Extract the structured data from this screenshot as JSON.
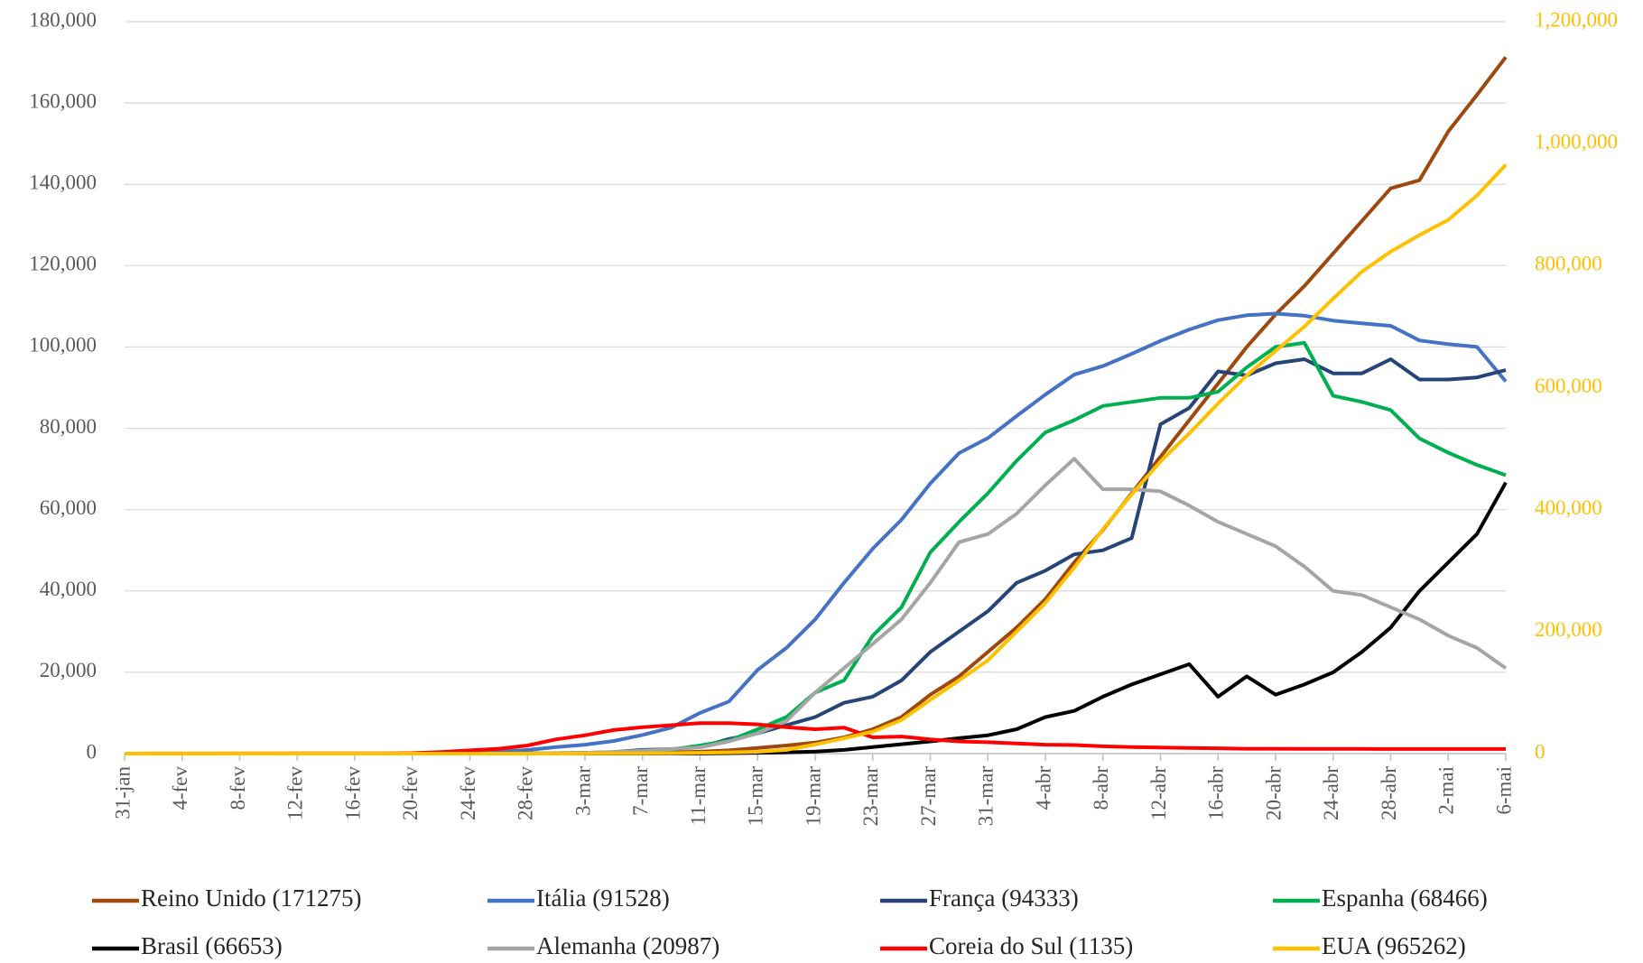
{
  "chart_data": {
    "type": "line",
    "categories": [
      "31-jan",
      null,
      "4-fev",
      null,
      "8-fev",
      null,
      "12-fev",
      null,
      "16-fev",
      null,
      "20-fev",
      null,
      "24-fev",
      null,
      "28-fev",
      null,
      "3-mar",
      null,
      "7-mar",
      null,
      "11-mar",
      null,
      "15-mar",
      null,
      "19-mar",
      null,
      "23-mar",
      null,
      "27-mar",
      null,
      "31-mar",
      null,
      "4-abr",
      null,
      "8-abr",
      null,
      "12-abr",
      null,
      "16-abr",
      null,
      "20-abr",
      null,
      "24-abr",
      null,
      "28-abr",
      null,
      "2-mai",
      null,
      "6-mai"
    ],
    "ylim": [
      0,
      180000
    ],
    "yticks": [
      0,
      {
        "value": 20000,
        "label": "20,000"
      },
      {
        "value": 40000,
        "label": "40,000"
      },
      {
        "value": 60000,
        "label": "60,000"
      },
      {
        "value": 80000,
        "label": "80,000"
      },
      {
        "value": 100000,
        "label": "100,000"
      },
      {
        "value": 120000,
        "label": "120,000"
      },
      {
        "value": 140000,
        "label": "140,000"
      },
      {
        "value": 160000,
        "label": "160,000"
      },
      {
        "value": 180000,
        "label": "180,000"
      }
    ],
    "y2lim": [
      0,
      1200000
    ],
    "y2ticks": [
      0,
      {
        "value": 200000,
        "label": "200,000"
      },
      {
        "value": 400000,
        "label": "400,000"
      },
      {
        "value": 600000,
        "label": "600,000"
      },
      {
        "value": 800000,
        "label": "800,000"
      },
      {
        "value": 1000000,
        "label": "1,000,000"
      },
      {
        "value": 1200000,
        "label": "1,200,000"
      }
    ],
    "y2color": "#ffc000",
    "grid": true,
    "legend": "bottom",
    "series": [
      {
        "name": "Reino Unido (171275)",
        "color": "#9e480e",
        "values": [
          0,
          0,
          0,
          0,
          0,
          0,
          0,
          0,
          0,
          0,
          0,
          0,
          0,
          10,
          20,
          35,
          50,
          120,
          270,
          320,
          460,
          800,
          1400,
          2000,
          2700,
          4000,
          6000,
          9000,
          14500,
          19000,
          25000,
          31000,
          38000,
          47000,
          55000,
          64000,
          73000,
          82000,
          91000,
          100000,
          108000,
          115000,
          123000,
          131000,
          139000,
          141000,
          153000,
          162000,
          171275
        ]
      },
      {
        "name": "Itália (91528)",
        "color": "#4472c4",
        "values": [
          2,
          3,
          3,
          3,
          3,
          3,
          3,
          3,
          3,
          3,
          3,
          60,
          230,
          470,
          890,
          1600,
          2200,
          3100,
          4600,
          6400,
          10000,
          12800,
          20600,
          26000,
          33000,
          42000,
          50400,
          57500,
          66400,
          73900,
          77600,
          83000,
          88300,
          93200,
          95300,
          98300,
          101500,
          104300,
          106600,
          107800,
          108200,
          107700,
          106500,
          105800,
          105200,
          101600,
          100700,
          100000,
          91528
        ]
      },
      {
        "name": "França (94333)",
        "color": "#264478",
        "values": [
          5,
          6,
          6,
          11,
          11,
          11,
          12,
          12,
          12,
          12,
          12,
          12,
          12,
          17,
          80,
          120,
          190,
          400,
          900,
          1100,
          1600,
          3600,
          5000,
          7000,
          9000,
          12500,
          14000,
          18000,
          25000,
          30000,
          35000,
          42000,
          45000,
          49000,
          50000,
          53000,
          81000,
          85000,
          94000,
          93000,
          96000,
          97000,
          93500,
          93500,
          97000,
          92000,
          92000,
          92500,
          94333
        ]
      },
      {
        "name": "Espanha (68466)",
        "color": "#00b050",
        "values": [
          0,
          0,
          0,
          0,
          2,
          2,
          2,
          2,
          2,
          2,
          2,
          2,
          2,
          20,
          40,
          80,
          150,
          280,
          400,
          1000,
          2000,
          3200,
          6000,
          9000,
          15000,
          18000,
          29000,
          36000,
          49500,
          57000,
          64000,
          72000,
          79000,
          82000,
          85500,
          86500,
          87500,
          87500,
          89000,
          95000,
          100000,
          101000,
          88000,
          86500,
          84500,
          77500,
          74000,
          71000,
          68466
        ]
      },
      {
        "name": "Brasil (66653)",
        "color": "#000000",
        "values": [
          0,
          0,
          0,
          0,
          0,
          0,
          0,
          0,
          0,
          0,
          0,
          0,
          0,
          0,
          0,
          0,
          0,
          0,
          0,
          25,
          30,
          100,
          200,
          300,
          500,
          900,
          1600,
          2300,
          3000,
          3800,
          4500,
          6000,
          9000,
          10500,
          14000,
          17000,
          19500,
          22000,
          14000,
          19000,
          14500,
          17000,
          20000,
          25000,
          31000,
          40000,
          47000,
          54000,
          66653
        ]
      },
      {
        "name": "Alemanha (20987)",
        "color": "#a5a5a5",
        "values": [
          5,
          5,
          8,
          10,
          12,
          14,
          16,
          16,
          16,
          16,
          16,
          16,
          16,
          16,
          50,
          130,
          200,
          400,
          700,
          1100,
          1500,
          3000,
          5000,
          8000,
          15000,
          21000,
          27000,
          33000,
          42000,
          52000,
          54000,
          59000,
          66000,
          72500,
          65000,
          65000,
          64500,
          61000,
          57000,
          54000,
          51000,
          46000,
          40000,
          39000,
          36000,
          33000,
          29000,
          26000,
          20987
        ]
      },
      {
        "name": "Coreia do Sul (1135)",
        "color": "#ff0000",
        "values": [
          11,
          15,
          16,
          24,
          25,
          27,
          28,
          28,
          28,
          29,
          100,
          400,
          800,
          1200,
          2000,
          3500,
          4500,
          5800,
          6500,
          7000,
          7500,
          7500,
          7200,
          6500,
          6000,
          6400,
          4000,
          4200,
          3500,
          3000,
          2800,
          2500,
          2200,
          2100,
          1800,
          1600,
          1500,
          1400,
          1300,
          1200,
          1200,
          1150,
          1150,
          1150,
          1140,
          1140,
          1140,
          1135,
          1135
        ]
      },
      {
        "name": "EUA (965262)",
        "color": "#ffc000",
        "axis": "y2",
        "values": [
          6,
          8,
          10,
          11,
          12,
          12,
          13,
          13,
          13,
          13,
          13,
          13,
          35,
          53,
          60,
          70,
          100,
          250,
          400,
          700,
          1300,
          2000,
          3000,
          6000,
          15000,
          25000,
          36000,
          55000,
          88000,
          120000,
          153000,
          200000,
          247000,
          305000,
          368000,
          425000,
          479000,
          525000,
          574000,
          620000,
          660000,
          700000,
          746000,
          790000,
          823000,
          850000,
          875000,
          915000,
          965262
        ]
      }
    ]
  }
}
